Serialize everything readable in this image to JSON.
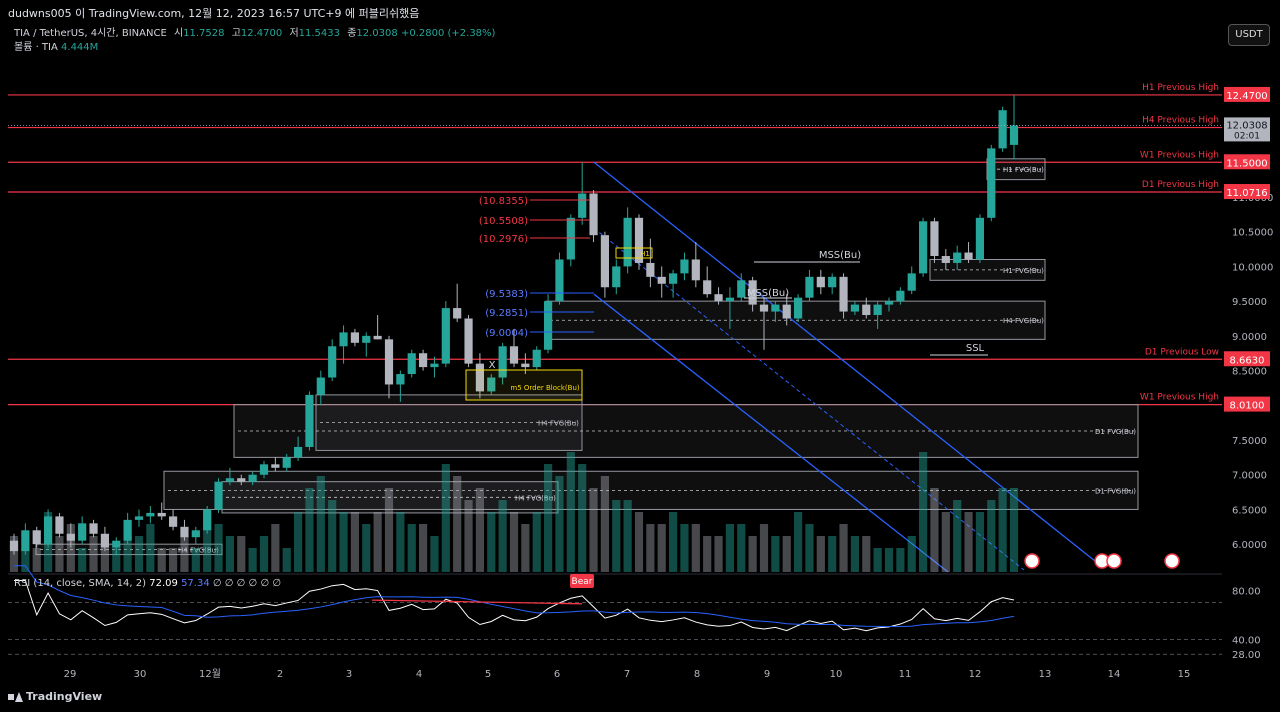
{
  "header": {
    "title": "dudwns005 이 TradingView.com, 12월 12, 2023 16:57 UTC+9 에 퍼블리쉬했음"
  },
  "legend": {
    "symbol": "TIA / TetherUS, 4시간, BINANCE",
    "open_label": "시",
    "open": "11.7528",
    "high_label": "고",
    "high": "12.4700",
    "low_label": "저",
    "low": "11.5433",
    "close_label": "종",
    "close": "12.0308",
    "change": "+0.2800 (+2.38%)",
    "volume_label": "볼륨 · TIA",
    "volume": "4.444M"
  },
  "currency_button": "USDT",
  "rsi_legend": {
    "params": "RSI (14, close, SMA, 14, 2)",
    "rsi": "72.09",
    "sma": "57.34",
    "extra": "∅ ∅ ∅ ∅ ∅ ∅"
  },
  "footer_logo": "TradingView",
  "colors": {
    "up": "#26a69a",
    "down": "#b2b5be",
    "level": "#f23645",
    "trend": "#2962ff",
    "box_border": "#9598a1",
    "rsi": "#ffffff",
    "rsi_sma": "#2962ff",
    "bear": "#f23645"
  },
  "chart_data": {
    "type": "candlestick",
    "y_range": [
      5.7,
      12.8
    ],
    "price_ticks": [
      "11.0000",
      "10.5000",
      "10.0000",
      "9.5000",
      "9.0000",
      "8.5000",
      "7.5000",
      "7.0000",
      "6.5000",
      "6.0000"
    ],
    "x_ticks": [
      "29",
      "30",
      "12월",
      "2",
      "3",
      "4",
      "5",
      "6",
      "7",
      "8",
      "9",
      "10",
      "11",
      "12",
      "13",
      "14",
      "15"
    ],
    "current_price": {
      "value": "12.0308",
      "countdown": "02:01"
    },
    "levels": [
      {
        "label": "H1 Previous High",
        "value": "12.4700"
      },
      {
        "label": "H4 Previous High",
        "value": "12.0000"
      },
      {
        "label": "W1 Previous High",
        "value": "11.5000"
      },
      {
        "label": "D1 Previous High",
        "value": "11.0716"
      },
      {
        "label": "D1 Previous Low",
        "value": "8.6630"
      },
      {
        "label": "W1 Previous High",
        "value": "8.0100"
      }
    ],
    "boxes": [
      {
        "label": "H1 FVG(Bu)"
      },
      {
        "label": "H1 FVG(Bu)"
      },
      {
        "label": "H4 FVG(Bu)"
      },
      {
        "label": "H4 FVG(Bu)"
      },
      {
        "label": "D1 FVG(Bu)"
      },
      {
        "label": "D1 FVG(Bu)"
      },
      {
        "label": "H4 FVG(Bu)"
      },
      {
        "label": "H4 FVG(Bu)"
      }
    ],
    "annotations": [
      "MSS(Bu)",
      "MSS(Bu)",
      "SSL",
      "m5 Order Block(Bu)",
      "H1",
      "X",
      "Bear"
    ],
    "red_fib": [
      "(10.8355)",
      "(10.5508)",
      "(10.2976)"
    ],
    "blue_fib": [
      "(9.5383)",
      "(9.2851)",
      "(9.0004)"
    ],
    "rsi_ticks": [
      "80.00",
      "40.00",
      "28.00"
    ],
    "rsi": {
      "value": 72.09,
      "sma": 57.34
    },
    "candles": [
      [
        6.05,
        6.15,
        5.85,
        5.9
      ],
      [
        5.9,
        6.3,
        5.85,
        6.2
      ],
      [
        6.2,
        6.25,
        5.95,
        6.0
      ],
      [
        6.0,
        6.5,
        5.95,
        6.4
      ],
      [
        6.4,
        6.45,
        6.1,
        6.15
      ],
      [
        6.15,
        6.3,
        5.95,
        6.05
      ],
      [
        6.05,
        6.4,
        6.0,
        6.3
      ],
      [
        6.3,
        6.35,
        6.1,
        6.15
      ],
      [
        6.15,
        6.25,
        5.9,
        5.95
      ],
      [
        5.95,
        6.1,
        5.85,
        6.05
      ],
      [
        6.05,
        6.45,
        6.0,
        6.35
      ],
      [
        6.35,
        6.5,
        6.25,
        6.4
      ],
      [
        6.4,
        6.55,
        6.3,
        6.45
      ],
      [
        6.45,
        6.6,
        6.35,
        6.4
      ],
      [
        6.4,
        6.5,
        6.2,
        6.25
      ],
      [
        6.25,
        6.35,
        6.05,
        6.1
      ],
      [
        6.1,
        6.25,
        6.0,
        6.2
      ],
      [
        6.2,
        6.55,
        6.15,
        6.5
      ],
      [
        6.5,
        6.95,
        6.45,
        6.9
      ],
      [
        6.9,
        7.1,
        6.85,
        6.95
      ],
      [
        6.95,
        7.0,
        6.85,
        6.9
      ],
      [
        6.9,
        7.05,
        6.85,
        7.0
      ],
      [
        7.0,
        7.2,
        6.95,
        7.15
      ],
      [
        7.15,
        7.25,
        7.05,
        7.1
      ],
      [
        7.1,
        7.3,
        7.05,
        7.25
      ],
      [
        7.25,
        7.55,
        7.2,
        7.4
      ],
      [
        7.4,
        8.2,
        7.35,
        8.15
      ],
      [
        8.15,
        8.5,
        8.0,
        8.4
      ],
      [
        8.4,
        8.95,
        8.35,
        8.85
      ],
      [
        8.85,
        9.15,
        8.6,
        9.05
      ],
      [
        9.05,
        9.1,
        8.85,
        8.9
      ],
      [
        8.9,
        9.05,
        8.7,
        9.0
      ],
      [
        9.0,
        9.3,
        8.95,
        8.95
      ],
      [
        8.95,
        9.0,
        8.1,
        8.3
      ],
      [
        8.3,
        8.5,
        8.05,
        8.45
      ],
      [
        8.45,
        8.8,
        8.4,
        8.75
      ],
      [
        8.75,
        8.8,
        8.5,
        8.55
      ],
      [
        8.55,
        8.7,
        8.4,
        8.6
      ],
      [
        8.6,
        9.5,
        8.55,
        9.4
      ],
      [
        9.4,
        9.75,
        9.2,
        9.25
      ],
      [
        9.25,
        9.3,
        8.55,
        8.6
      ],
      [
        8.6,
        8.75,
        8.1,
        8.2
      ],
      [
        8.2,
        8.45,
        8.15,
        8.4
      ],
      [
        8.4,
        8.9,
        8.3,
        8.85
      ],
      [
        8.85,
        9.1,
        8.55,
        8.6
      ],
      [
        8.6,
        8.75,
        8.45,
        8.55
      ],
      [
        8.55,
        8.85,
        8.5,
        8.8
      ],
      [
        8.8,
        9.6,
        8.75,
        9.5
      ],
      [
        9.5,
        10.2,
        9.45,
        10.1
      ],
      [
        10.1,
        10.75,
        10.0,
        10.7
      ],
      [
        10.7,
        11.5,
        10.6,
        11.05
      ],
      [
        11.05,
        11.1,
        10.35,
        10.45
      ],
      [
        10.45,
        10.5,
        9.55,
        9.7
      ],
      [
        9.7,
        10.1,
        9.6,
        10.0
      ],
      [
        10.0,
        10.85,
        9.9,
        10.7
      ],
      [
        10.7,
        10.75,
        9.95,
        10.05
      ],
      [
        10.05,
        10.4,
        9.7,
        9.85
      ],
      [
        9.85,
        10.0,
        9.55,
        9.75
      ],
      [
        9.75,
        9.95,
        9.55,
        9.9
      ],
      [
        9.9,
        10.2,
        9.8,
        10.1
      ],
      [
        10.1,
        10.35,
        9.7,
        9.8
      ],
      [
        9.8,
        10.0,
        9.55,
        9.6
      ],
      [
        9.6,
        9.7,
        9.45,
        9.5
      ],
      [
        9.5,
        9.7,
        9.1,
        9.55
      ],
      [
        9.55,
        9.9,
        9.5,
        9.8
      ],
      [
        9.8,
        9.85,
        9.35,
        9.45
      ],
      [
        9.45,
        9.55,
        8.8,
        9.35
      ],
      [
        9.35,
        9.5,
        9.2,
        9.45
      ],
      [
        9.45,
        9.6,
        9.15,
        9.25
      ],
      [
        9.25,
        9.6,
        9.2,
        9.55
      ],
      [
        9.55,
        9.95,
        9.5,
        9.85
      ],
      [
        9.85,
        9.95,
        9.6,
        9.7
      ],
      [
        9.7,
        9.9,
        9.6,
        9.85
      ],
      [
        9.85,
        9.9,
        9.25,
        9.35
      ],
      [
        9.35,
        9.5,
        9.3,
        9.45
      ],
      [
        9.45,
        9.55,
        9.25,
        9.3
      ],
      [
        9.3,
        9.5,
        9.1,
        9.45
      ],
      [
        9.45,
        9.55,
        9.35,
        9.5
      ],
      [
        9.5,
        9.7,
        9.45,
        9.65
      ],
      [
        9.65,
        10.0,
        9.6,
        9.9
      ],
      [
        9.9,
        10.7,
        9.85,
        10.65
      ],
      [
        10.65,
        10.7,
        10.05,
        10.15
      ],
      [
        10.15,
        10.25,
        9.95,
        10.05
      ],
      [
        10.05,
        10.3,
        9.95,
        10.2
      ],
      [
        10.2,
        10.35,
        10.05,
        10.1
      ],
      [
        10.1,
        10.75,
        10.05,
        10.7
      ],
      [
        10.7,
        11.75,
        10.65,
        11.7
      ],
      [
        11.7,
        12.3,
        11.65,
        12.25
      ],
      [
        11.75,
        12.47,
        11.54,
        12.03
      ]
    ],
    "volumes": [
      3,
      2,
      2,
      5,
      3,
      4,
      2,
      3,
      2,
      2,
      3,
      3,
      4,
      2,
      2,
      3,
      2,
      5,
      4,
      3,
      3,
      2,
      3,
      4,
      2,
      5,
      7,
      8,
      6,
      5,
      5,
      4,
      5,
      7,
      5,
      4,
      4,
      3,
      9,
      8,
      6,
      7,
      5,
      6,
      5,
      4,
      5,
      9,
      8,
      10,
      9,
      7,
      8,
      6,
      6,
      5,
      4,
      4,
      5,
      4,
      4,
      3,
      3,
      4,
      4,
      3,
      4,
      3,
      3,
      5,
      4,
      3,
      3,
      4,
      3,
      3,
      2,
      2,
      2,
      3,
      10,
      7,
      5,
      6,
      5,
      5,
      6,
      7,
      7
    ]
  }
}
